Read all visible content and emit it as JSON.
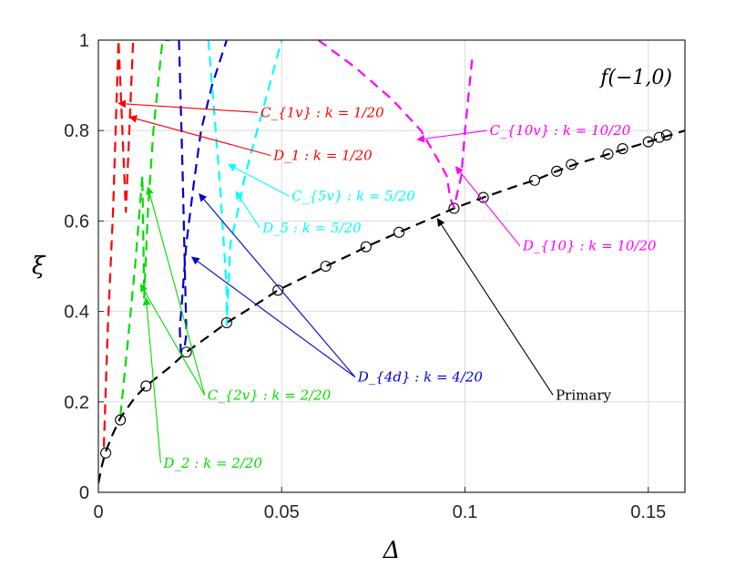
{
  "chart_data": {
    "type": "line",
    "title": "",
    "panel_label": "f(−1,0)",
    "xlabel": "Δ",
    "ylabel": "ξ",
    "xlim": [
      0,
      0.16
    ],
    "ylim": [
      0,
      1
    ],
    "grid": true,
    "xticks": [
      {
        "value": 0,
        "label": "0"
      },
      {
        "value": 0.05,
        "label": "0.05"
      },
      {
        "value": 0.1,
        "label": "0.1"
      },
      {
        "value": 0.15,
        "label": "0.15"
      }
    ],
    "yticks": [
      {
        "value": 0,
        "label": "0"
      },
      {
        "value": 0.2,
        "label": "0.2"
      },
      {
        "value": 0.4,
        "label": "0.4"
      },
      {
        "value": 0.6,
        "label": "0.6"
      },
      {
        "value": 0.8,
        "label": "0.8"
      },
      {
        "value": 1,
        "label": "1"
      }
    ],
    "series": [
      {
        "name": "Primary",
        "color": "#000000",
        "style": "dashed",
        "x": [
          0.0,
          0.001,
          0.002,
          0.004,
          0.006,
          0.01,
          0.013,
          0.02,
          0.024,
          0.03,
          0.035,
          0.042,
          0.049,
          0.056,
          0.062,
          0.07,
          0.073,
          0.082,
          0.09,
          0.097,
          0.105,
          0.115,
          0.119,
          0.125,
          0.13,
          0.14,
          0.15,
          0.16
        ],
        "y": [
          0.02,
          0.06,
          0.09,
          0.13,
          0.165,
          0.21,
          0.235,
          0.28,
          0.31,
          0.345,
          0.375,
          0.41,
          0.447,
          0.475,
          0.5,
          0.53,
          0.543,
          0.575,
          0.603,
          0.628,
          0.652,
          0.68,
          0.69,
          0.71,
          0.725,
          0.75,
          0.775,
          0.8
        ]
      },
      {
        "name": "C1v / D1 (k=1/20)",
        "color": "#ff0000",
        "style": "dashed",
        "x": [
          0.0015,
          0.0025,
          0.004,
          0.0055,
          0.0075,
          0.0095
        ],
        "y": [
          0.1,
          0.35,
          0.62,
          1.0,
          0.62,
          1.0
        ]
      },
      {
        "name": "C2v / D2 (k=2/20)",
        "color": "#00dd00",
        "style": "dashed",
        "x": [
          0.006,
          0.008,
          0.01,
          0.012,
          0.0125,
          0.0135,
          0.015,
          0.0175,
          0.0195
        ],
        "y": [
          0.17,
          0.33,
          0.5,
          0.7,
          0.43,
          0.62,
          0.8,
          1.0,
          1.0
        ]
      },
      {
        "name": "D4d (k=4/20)",
        "color": "#0000cc",
        "style": "dashed",
        "x": [
          0.022,
          0.023,
          0.024,
          0.0235,
          0.0225,
          0.0222,
          0.024,
          0.026,
          0.028,
          0.031,
          0.035
        ],
        "y": [
          1.0,
          0.7,
          0.35,
          0.32,
          0.31,
          0.36,
          0.55,
          0.68,
          0.8,
          0.9,
          1.0
        ]
      },
      {
        "name": "C5v / D5 (k=5/20)",
        "color": "#00ffff",
        "style": "dashed",
        "x": [
          0.03,
          0.033,
          0.035,
          0.035,
          0.036,
          0.038,
          0.04,
          0.045,
          0.05
        ],
        "y": [
          1.0,
          0.7,
          0.45,
          0.37,
          0.55,
          0.62,
          0.7,
          0.85,
          1.0
        ]
      },
      {
        "name": "C10v / D10 (k=10/20)",
        "color": "#ff00ff",
        "style": "dashed",
        "x": [
          0.06,
          0.07,
          0.08,
          0.088,
          0.093,
          0.095,
          0.096,
          0.097,
          0.099,
          0.1,
          0.102
        ],
        "y": [
          1.0,
          0.94,
          0.87,
          0.8,
          0.73,
          0.7,
          0.65,
          0.63,
          0.7,
          0.8,
          0.96
        ]
      }
    ],
    "markers": {
      "series": "Primary",
      "x": [
        0.002,
        0.006,
        0.013,
        0.024,
        0.035,
        0.049,
        0.062,
        0.073,
        0.082,
        0.097,
        0.105,
        0.119,
        0.125,
        0.129,
        0.139,
        0.143,
        0.15,
        0.153,
        0.155
      ],
      "y": [
        0.087,
        0.16,
        0.235,
        0.31,
        0.375,
        0.447,
        0.5,
        0.543,
        0.575,
        0.628,
        0.652,
        0.69,
        0.71,
        0.725,
        0.748,
        0.76,
        0.775,
        0.785,
        0.79
      ]
    },
    "annotations": [
      {
        "label": "C_{1v} : k = 1/20",
        "color": "#ff0000",
        "text_xy": [
          0.0435,
          0.84
        ],
        "arrows": [
          [
            0.0055,
            0.86
          ]
        ]
      },
      {
        "label": "D_1 : k = 1/20",
        "color": "#ff0000",
        "text_xy": [
          0.047,
          0.745
        ],
        "arrows": [
          [
            0.0085,
            0.83
          ]
        ]
      },
      {
        "label": "C_{2v} : k = 2/20",
        "color": "#00dd00",
        "text_xy": [
          0.029,
          0.215
        ],
        "arrows": [
          [
            0.0135,
            0.675
          ],
          [
            0.0115,
            0.46
          ]
        ]
      },
      {
        "label": "D_2 : k = 2/20",
        "color": "#00dd00",
        "text_xy": [
          0.017,
          0.065
        ],
        "arrows": [
          [
            0.013,
            0.43
          ]
        ]
      },
      {
        "label": "D_{4d} : k = 4/20",
        "color": "#0000cc",
        "text_xy": [
          0.07,
          0.255
        ],
        "arrows": [
          [
            0.0275,
            0.66
          ],
          [
            0.0255,
            0.52
          ]
        ]
      },
      {
        "label": "C_{5v} : k = 5/20",
        "color": "#00ffff",
        "text_xy": [
          0.052,
          0.655
        ],
        "arrows": [
          [
            0.0355,
            0.725
          ]
        ]
      },
      {
        "label": "D_5 : k = 5/20",
        "color": "#00ffff",
        "text_xy": [
          0.044,
          0.585
        ],
        "arrows": [
          [
            0.0375,
            0.665
          ]
        ]
      },
      {
        "label": "C_{10v} : k = 10/20",
        "color": "#ff00ff",
        "text_xy": [
          0.106,
          0.8
        ],
        "arrows": [
          [
            0.087,
            0.78
          ]
        ]
      },
      {
        "label": "D_{10} : k = 10/20",
        "color": "#ff00ff",
        "text_xy": [
          0.115,
          0.545
        ],
        "arrows": [
          [
            0.0975,
            0.72
          ]
        ]
      },
      {
        "label": "Primary",
        "color": "#000000",
        "text_xy": [
          0.124,
          0.215
        ],
        "arrows": [
          [
            0.0925,
            0.605
          ]
        ]
      }
    ]
  }
}
